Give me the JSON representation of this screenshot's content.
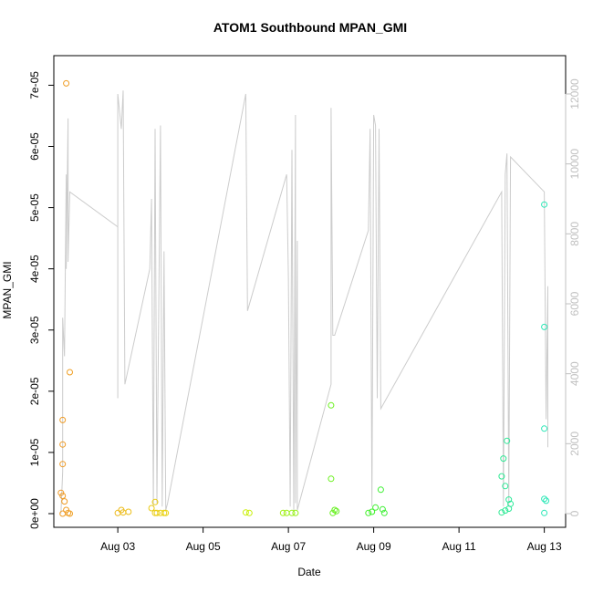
{
  "chart_data": {
    "type": "scatter",
    "title": "ATOM1 Southbound MPAN_GMI",
    "xlabel": "Date",
    "ylabel": "MPAN_GMI",
    "x_ticks": [
      "Aug 03",
      "Aug 05",
      "Aug 07",
      "Aug 09",
      "Aug 11",
      "Aug 13"
    ],
    "y_ticks": [
      "0e+00",
      "1e-05",
      "2e-05",
      "3e-05",
      "4e-05",
      "5e-05",
      "6e-05",
      "7e-05"
    ],
    "y2_ticks": [
      "0",
      "2000",
      "4000",
      "6000",
      "8000",
      "10000",
      "12000"
    ],
    "xlim": [
      "2016-08-01T12:00",
      "2016-08-13T12:00"
    ],
    "ylim": [
      0,
      7.2e-05
    ],
    "y2lim": [
      0,
      12600
    ],
    "grid": false,
    "legend": "none",
    "points_series": {
      "name": "",
      "color_scale": "orange-yellow-green-cyan by time",
      "points": [
        [
          "2016-08-01T19:00",
          7.03e-05
        ],
        [
          "2016-08-01T21:00",
          2.31e-05
        ],
        [
          "2016-08-01T17:00",
          1.53e-05
        ],
        [
          "2016-08-01T17:00",
          1.13e-05
        ],
        [
          "2016-08-01T17:00",
          8.1e-06
        ],
        [
          "2016-08-01T16:00",
          3.4e-06
        ],
        [
          "2016-08-01T17:00",
          2.9e-06
        ],
        [
          "2016-08-01T18:00",
          2e-06
        ],
        [
          "2016-08-01T19:00",
          6e-07
        ],
        [
          "2016-08-01T20:00",
          1e-07
        ],
        [
          "2016-08-01T17:00",
          0.0
        ],
        [
          "2016-08-01T21:00",
          0.0
        ],
        [
          "2016-08-03T00:00",
          1e-07
        ],
        [
          "2016-08-03T03:00",
          2e-07
        ],
        [
          "2016-08-03T06:00",
          3e-07
        ],
        [
          "2016-08-03T02:00",
          6e-07
        ],
        [
          "2016-08-03T21:00",
          1.9e-06
        ],
        [
          "2016-08-03T19:00",
          9e-07
        ],
        [
          "2016-08-03T21:00",
          1e-07
        ],
        [
          "2016-08-03T22:00",
          1e-07
        ],
        [
          "2016-08-04T00:00",
          1e-07
        ],
        [
          "2016-08-04T02:00",
          1e-07
        ],
        [
          "2016-08-04T03:00",
          1e-07
        ],
        [
          "2016-08-06T00:00",
          2e-07
        ],
        [
          "2016-08-06T02:00",
          1e-07
        ],
        [
          "2016-08-06T21:00",
          1e-07
        ],
        [
          "2016-08-06T23:00",
          1e-07
        ],
        [
          "2016-08-07T02:00",
          1e-07
        ],
        [
          "2016-08-07T04:00",
          1e-07
        ],
        [
          "2016-08-08T00:00",
          1.77e-05
        ],
        [
          "2016-08-08T00:00",
          5.7e-06
        ],
        [
          "2016-08-08T02:00",
          6e-07
        ],
        [
          "2016-08-08T03:00",
          4e-07
        ],
        [
          "2016-08-08T01:00",
          1e-07
        ],
        [
          "2016-08-08T21:00",
          1e-07
        ],
        [
          "2016-08-08T23:00",
          3e-07
        ],
        [
          "2016-08-09T01:00",
          1e-06
        ],
        [
          "2016-08-09T04:00",
          3.9e-06
        ],
        [
          "2016-08-09T05:00",
          7e-07
        ],
        [
          "2016-08-09T06:00",
          1e-07
        ],
        [
          "2016-08-12T00:00",
          6.1e-06
        ],
        [
          "2016-08-12T01:00",
          9e-06
        ],
        [
          "2016-08-12T02:00",
          4.5e-06
        ],
        [
          "2016-08-12T03:00",
          1.19e-05
        ],
        [
          "2016-08-12T04:00",
          2.3e-06
        ],
        [
          "2016-08-12T05:00",
          1.6e-06
        ],
        [
          "2016-08-12T00:00",
          2e-07
        ],
        [
          "2016-08-12T02:00",
          5e-07
        ],
        [
          "2016-08-12T04:00",
          8e-07
        ],
        [
          "2016-08-13T00:00",
          5.05e-05
        ],
        [
          "2016-08-13T00:00",
          3.05e-05
        ],
        [
          "2016-08-13T00:00",
          1.39e-05
        ],
        [
          "2016-08-13T01:00",
          2.1e-06
        ],
        [
          "2016-08-13T00:00",
          2.4e-06
        ],
        [
          "2016-08-13T00:00",
          1e-07
        ]
      ]
    },
    "line_series": {
      "name": "",
      "axis": "right",
      "color": "#cccccc",
      "points": [
        [
          "2016-08-01T16:00",
          0
        ],
        [
          "2016-08-01T17:00",
          1200
        ],
        [
          "2016-08-01T17:00",
          5600
        ],
        [
          "2016-08-01T18:00",
          4500
        ],
        [
          "2016-08-01T19:00",
          9700
        ],
        [
          "2016-08-01T19:00",
          7000
        ],
        [
          "2016-08-01T20:00",
          11300
        ],
        [
          "2016-08-01T20:00",
          7200
        ],
        [
          "2016-08-01T21:00",
          9200
        ],
        [
          "2016-08-03T00:00",
          8200
        ],
        [
          "2016-08-03T00:00",
          3300
        ],
        [
          "2016-08-03T00:00",
          12000
        ],
        [
          "2016-08-03T02:00",
          11000
        ],
        [
          "2016-08-03T03:00",
          12100
        ],
        [
          "2016-08-03T04:00",
          3700
        ],
        [
          "2016-08-03T18:00",
          7000
        ],
        [
          "2016-08-03T19:00",
          9000
        ],
        [
          "2016-08-03T20:00",
          200
        ],
        [
          "2016-08-03T21:00",
          11000
        ],
        [
          "2016-08-03T22:00",
          300
        ],
        [
          "2016-08-04T00:00",
          11100
        ],
        [
          "2016-08-04T01:00",
          200
        ],
        [
          "2016-08-04T02:00",
          7500
        ],
        [
          "2016-08-04T03:00",
          100
        ],
        [
          "2016-08-04T04:00",
          300
        ],
        [
          "2016-08-06T00:00",
          12000
        ],
        [
          "2016-08-06T01:00",
          5800
        ],
        [
          "2016-08-06T23:00",
          9700
        ],
        [
          "2016-08-07T00:00",
          6800
        ],
        [
          "2016-08-07T01:00",
          200
        ],
        [
          "2016-08-07T02:00",
          10400
        ],
        [
          "2016-08-07T03:00",
          100
        ],
        [
          "2016-08-07T04:00",
          11400
        ],
        [
          "2016-08-07T04:00",
          300
        ],
        [
          "2016-08-07T05:00",
          7800
        ],
        [
          "2016-08-07T05:00",
          100
        ],
        [
          "2016-08-08T00:00",
          3700
        ],
        [
          "2016-08-08T00:00",
          11600
        ],
        [
          "2016-08-08T01:00",
          5100
        ],
        [
          "2016-08-08T02:00",
          5100
        ],
        [
          "2016-08-08T21:00",
          8100
        ],
        [
          "2016-08-08T22:00",
          11000
        ],
        [
          "2016-08-08T23:00",
          200
        ],
        [
          "2016-08-09T00:00",
          11400
        ],
        [
          "2016-08-09T01:00",
          11100
        ],
        [
          "2016-08-09T02:00",
          3300
        ],
        [
          "2016-08-09T03:00",
          11000
        ],
        [
          "2016-08-09T04:00",
          3000
        ],
        [
          "2016-08-12T00:00",
          9200
        ],
        [
          "2016-08-12T01:00",
          200
        ],
        [
          "2016-08-12T02:00",
          9700
        ],
        [
          "2016-08-12T03:00",
          10300
        ],
        [
          "2016-08-12T04:00",
          200
        ],
        [
          "2016-08-12T05:00",
          10200
        ],
        [
          "2016-08-13T00:00",
          9200
        ],
        [
          "2016-08-13T01:00",
          2700
        ],
        [
          "2016-08-13T02:00",
          6500
        ],
        [
          "2016-08-13T02:00",
          1900
        ]
      ]
    }
  }
}
